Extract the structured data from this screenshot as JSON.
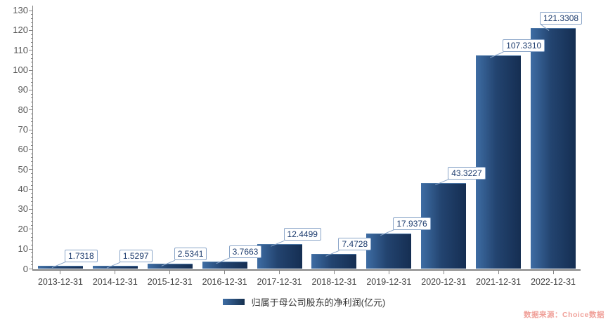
{
  "chart_data": {
    "type": "bar",
    "title": "",
    "categories": [
      "2013-12-31",
      "2014-12-31",
      "2015-12-31",
      "2016-12-31",
      "2017-12-31",
      "2018-12-31",
      "2019-12-31",
      "2020-12-31",
      "2021-12-31",
      "2022-12-31"
    ],
    "values": [
      1.7318,
      1.5297,
      2.5341,
      3.7663,
      12.4499,
      7.4728,
      17.9376,
      43.3227,
      107.331,
      121.3308
    ],
    "value_labels": [
      "1.7318",
      "1.5297",
      "2.5341",
      "3.7663",
      "12.4499",
      "7.4728",
      "17.9376",
      "43.3227",
      "107.3310",
      "121.3308"
    ],
    "legend": "归属于母公司股东的净利润(亿元)",
    "xlabel": "",
    "ylabel": "",
    "ylim": [
      0,
      130
    ],
    "y_tick_interval": 10,
    "y_minor_tick_interval": 2,
    "y_ticks": [
      0,
      10,
      20,
      30,
      40,
      50,
      60,
      70,
      80,
      90,
      100,
      110,
      120,
      130
    ],
    "grid": false,
    "legend_position": "bottom",
    "colors": {
      "bar_gradient_start": "#3e6da4",
      "bar_gradient_end": "#152e52",
      "value_label_border": "#8aa5c8",
      "value_label_text": "#1d3c6e",
      "axis": "#848484",
      "y_tick_label": "#595959",
      "x_tick_label": "#404040",
      "legend_text": "#333333",
      "source_text": "#f0a19a"
    }
  },
  "source_note": "数据来源：Choice数据"
}
